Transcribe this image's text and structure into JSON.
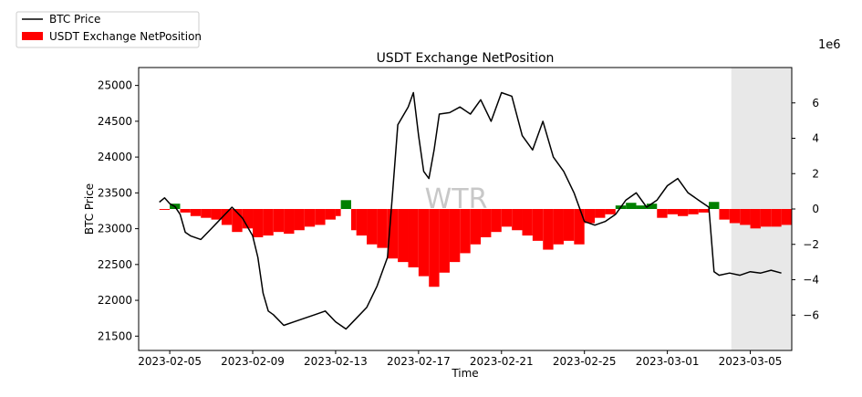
{
  "chart_data": {
    "type": "line",
    "title": "USDT Exchange NetPosition",
    "xlabel": "Time",
    "ylabel": "BTC Price",
    "y2_offset_label": "1e6",
    "watermark": "WTR",
    "legend": {
      "placement": "top-left",
      "entries": [
        {
          "name": "BTC Price",
          "kind": "line",
          "color": "#000000"
        },
        {
          "name": "USDT Exchange NetPosition",
          "kind": "bar",
          "color": "#ff0000"
        }
      ]
    },
    "x_range": [
      "2023-02-03T12:00",
      "2023-03-07T00:00"
    ],
    "x_ticks": [
      "2023-02-05",
      "2023-02-09",
      "2023-02-13",
      "2023-02-17",
      "2023-02-21",
      "2023-02-25",
      "2023-03-01",
      "2023-03-05"
    ],
    "ylim": [
      21300,
      25250
    ],
    "y_ticks": [
      21500,
      22000,
      22500,
      23000,
      23500,
      24000,
      24500,
      25000
    ],
    "y2lim": [
      -8.0,
      8.0
    ],
    "y2_ticks": [
      -6,
      -4,
      -2,
      0,
      2,
      4,
      6
    ],
    "shaded_region": {
      "start": "2023-03-04T02:00",
      "end": "2023-03-07T00:00",
      "color": "#e8e8e8"
    },
    "colors": {
      "positive": "#008000",
      "negative": "#ff0000",
      "price": "#000000"
    },
    "series": [
      {
        "name": "BTC Price",
        "axis": "left",
        "points": [
          [
            "2023-02-04T12:00",
            23370
          ],
          [
            "2023-02-04T18:00",
            23430
          ],
          [
            "2023-02-05T00:00",
            23350
          ],
          [
            "2023-02-05T06:00",
            23310
          ],
          [
            "2023-02-05T12:00",
            23200
          ],
          [
            "2023-02-05T18:00",
            22950
          ],
          [
            "2023-02-06T00:00",
            22900
          ],
          [
            "2023-02-06T12:00",
            22850
          ],
          [
            "2023-02-07T00:00",
            23000
          ],
          [
            "2023-02-07T12:00",
            23150
          ],
          [
            "2023-02-08T00:00",
            23300
          ],
          [
            "2023-02-08T12:00",
            23150
          ],
          [
            "2023-02-09T00:00",
            22900
          ],
          [
            "2023-02-09T06:00",
            22600
          ],
          [
            "2023-02-09T12:00",
            22100
          ],
          [
            "2023-02-09T18:00",
            21850
          ],
          [
            "2023-02-10T00:00",
            21800
          ],
          [
            "2023-02-10T12:00",
            21650
          ],
          [
            "2023-02-11T00:00",
            21700
          ],
          [
            "2023-02-11T12:00",
            21750
          ],
          [
            "2023-02-12T00:00",
            21800
          ],
          [
            "2023-02-12T12:00",
            21850
          ],
          [
            "2023-02-13T00:00",
            21700
          ],
          [
            "2023-02-13T12:00",
            21600
          ],
          [
            "2023-02-14T00:00",
            21750
          ],
          [
            "2023-02-14T12:00",
            21900
          ],
          [
            "2023-02-15T00:00",
            22200
          ],
          [
            "2023-02-15T12:00",
            22600
          ],
          [
            "2023-02-15T18:00",
            23500
          ],
          [
            "2023-02-16T00:00",
            24450
          ],
          [
            "2023-02-16T12:00",
            24700
          ],
          [
            "2023-02-16T18:00",
            24900
          ],
          [
            "2023-02-17T00:00",
            24300
          ],
          [
            "2023-02-17T06:00",
            23800
          ],
          [
            "2023-02-17T12:00",
            23700
          ],
          [
            "2023-02-17T18:00",
            24100
          ],
          [
            "2023-02-18T00:00",
            24600
          ],
          [
            "2023-02-18T12:00",
            24620
          ],
          [
            "2023-02-19T00:00",
            24700
          ],
          [
            "2023-02-19T12:00",
            24600
          ],
          [
            "2023-02-20T00:00",
            24800
          ],
          [
            "2023-02-20T12:00",
            24500
          ],
          [
            "2023-02-21T00:00",
            24900
          ],
          [
            "2023-02-21T12:00",
            24850
          ],
          [
            "2023-02-22T00:00",
            24300
          ],
          [
            "2023-02-22T12:00",
            24100
          ],
          [
            "2023-02-23T00:00",
            24500
          ],
          [
            "2023-02-23T12:00",
            24000
          ],
          [
            "2023-02-24T00:00",
            23800
          ],
          [
            "2023-02-24T12:00",
            23500
          ],
          [
            "2023-02-25T00:00",
            23100
          ],
          [
            "2023-02-25T12:00",
            23050
          ],
          [
            "2023-02-26T00:00",
            23100
          ],
          [
            "2023-02-26T12:00",
            23200
          ],
          [
            "2023-02-27T00:00",
            23400
          ],
          [
            "2023-02-27T12:00",
            23500
          ],
          [
            "2023-02-28T00:00",
            23300
          ],
          [
            "2023-02-28T12:00",
            23400
          ],
          [
            "2023-03-01T00:00",
            23600
          ],
          [
            "2023-03-01T12:00",
            23700
          ],
          [
            "2023-03-02T00:00",
            23500
          ],
          [
            "2023-03-02T12:00",
            23400
          ],
          [
            "2023-03-03T00:00",
            23300
          ],
          [
            "2023-03-03T06:00",
            22400
          ],
          [
            "2023-03-03T12:00",
            22350
          ],
          [
            "2023-03-04T00:00",
            22380
          ],
          [
            "2023-03-04T12:00",
            22350
          ],
          [
            "2023-03-05T00:00",
            22400
          ],
          [
            "2023-03-05T12:00",
            22380
          ],
          [
            "2023-03-06T00:00",
            22420
          ],
          [
            "2023-03-06T12:00",
            22380
          ]
        ]
      },
      {
        "name": "USDT Exchange NetPosition",
        "axis": "right",
        "unit_scale": "1e6",
        "points": [
          [
            "2023-02-04T12:00",
            -0.05
          ],
          [
            "2023-02-05T00:00",
            0.3
          ],
          [
            "2023-02-05T12:00",
            -0.2
          ],
          [
            "2023-02-06T00:00",
            -0.4
          ],
          [
            "2023-02-06T12:00",
            -0.5
          ],
          [
            "2023-02-07T00:00",
            -0.6
          ],
          [
            "2023-02-07T12:00",
            -0.9
          ],
          [
            "2023-02-08T00:00",
            -1.3
          ],
          [
            "2023-02-08T12:00",
            -1.1
          ],
          [
            "2023-02-09T00:00",
            -1.6
          ],
          [
            "2023-02-09T12:00",
            -1.5
          ],
          [
            "2023-02-10T00:00",
            -1.3
          ],
          [
            "2023-02-10T12:00",
            -1.4
          ],
          [
            "2023-02-11T00:00",
            -1.2
          ],
          [
            "2023-02-11T12:00",
            -1.0
          ],
          [
            "2023-02-12T00:00",
            -0.9
          ],
          [
            "2023-02-12T12:00",
            -0.6
          ],
          [
            "2023-02-13T00:00",
            -0.4
          ],
          [
            "2023-02-13T06:00",
            0.5
          ],
          [
            "2023-02-13T18:00",
            -1.2
          ],
          [
            "2023-02-14T00:00",
            -1.5
          ],
          [
            "2023-02-14T12:00",
            -2.0
          ],
          [
            "2023-02-15T00:00",
            -2.2
          ],
          [
            "2023-02-15T12:00",
            -2.8
          ],
          [
            "2023-02-16T00:00",
            -3.0
          ],
          [
            "2023-02-16T12:00",
            -3.3
          ],
          [
            "2023-02-17T00:00",
            -3.8
          ],
          [
            "2023-02-17T12:00",
            -4.4
          ],
          [
            "2023-02-18T00:00",
            -3.6
          ],
          [
            "2023-02-18T12:00",
            -3.0
          ],
          [
            "2023-02-19T00:00",
            -2.5
          ],
          [
            "2023-02-19T12:00",
            -2.0
          ],
          [
            "2023-02-20T00:00",
            -1.6
          ],
          [
            "2023-02-20T12:00",
            -1.3
          ],
          [
            "2023-02-21T00:00",
            -1.0
          ],
          [
            "2023-02-21T12:00",
            -1.2
          ],
          [
            "2023-02-22T00:00",
            -1.5
          ],
          [
            "2023-02-22T12:00",
            -1.8
          ],
          [
            "2023-02-23T00:00",
            -2.3
          ],
          [
            "2023-02-23T12:00",
            -2.0
          ],
          [
            "2023-02-24T00:00",
            -1.8
          ],
          [
            "2023-02-24T12:00",
            -2.0
          ],
          [
            "2023-02-25T00:00",
            -0.8
          ],
          [
            "2023-02-25T12:00",
            -0.5
          ],
          [
            "2023-02-26T00:00",
            -0.3
          ],
          [
            "2023-02-26T12:00",
            0.2
          ],
          [
            "2023-02-27T00:00",
            0.35
          ],
          [
            "2023-02-27T12:00",
            0.2
          ],
          [
            "2023-02-28T00:00",
            0.3
          ],
          [
            "2023-02-28T12:00",
            -0.5
          ],
          [
            "2023-03-01T00:00",
            -0.3
          ],
          [
            "2023-03-01T12:00",
            -0.4
          ],
          [
            "2023-03-02T00:00",
            -0.3
          ],
          [
            "2023-03-02T12:00",
            -0.2
          ],
          [
            "2023-03-03T00:00",
            0.4
          ],
          [
            "2023-03-03T12:00",
            -0.6
          ],
          [
            "2023-03-04T00:00",
            -0.8
          ],
          [
            "2023-03-04T12:00",
            -0.9
          ],
          [
            "2023-03-05T00:00",
            -1.1
          ],
          [
            "2023-03-05T12:00",
            -1.0
          ],
          [
            "2023-03-06T00:00",
            -1.0
          ],
          [
            "2023-03-06T12:00",
            -0.9
          ]
        ]
      }
    ]
  }
}
